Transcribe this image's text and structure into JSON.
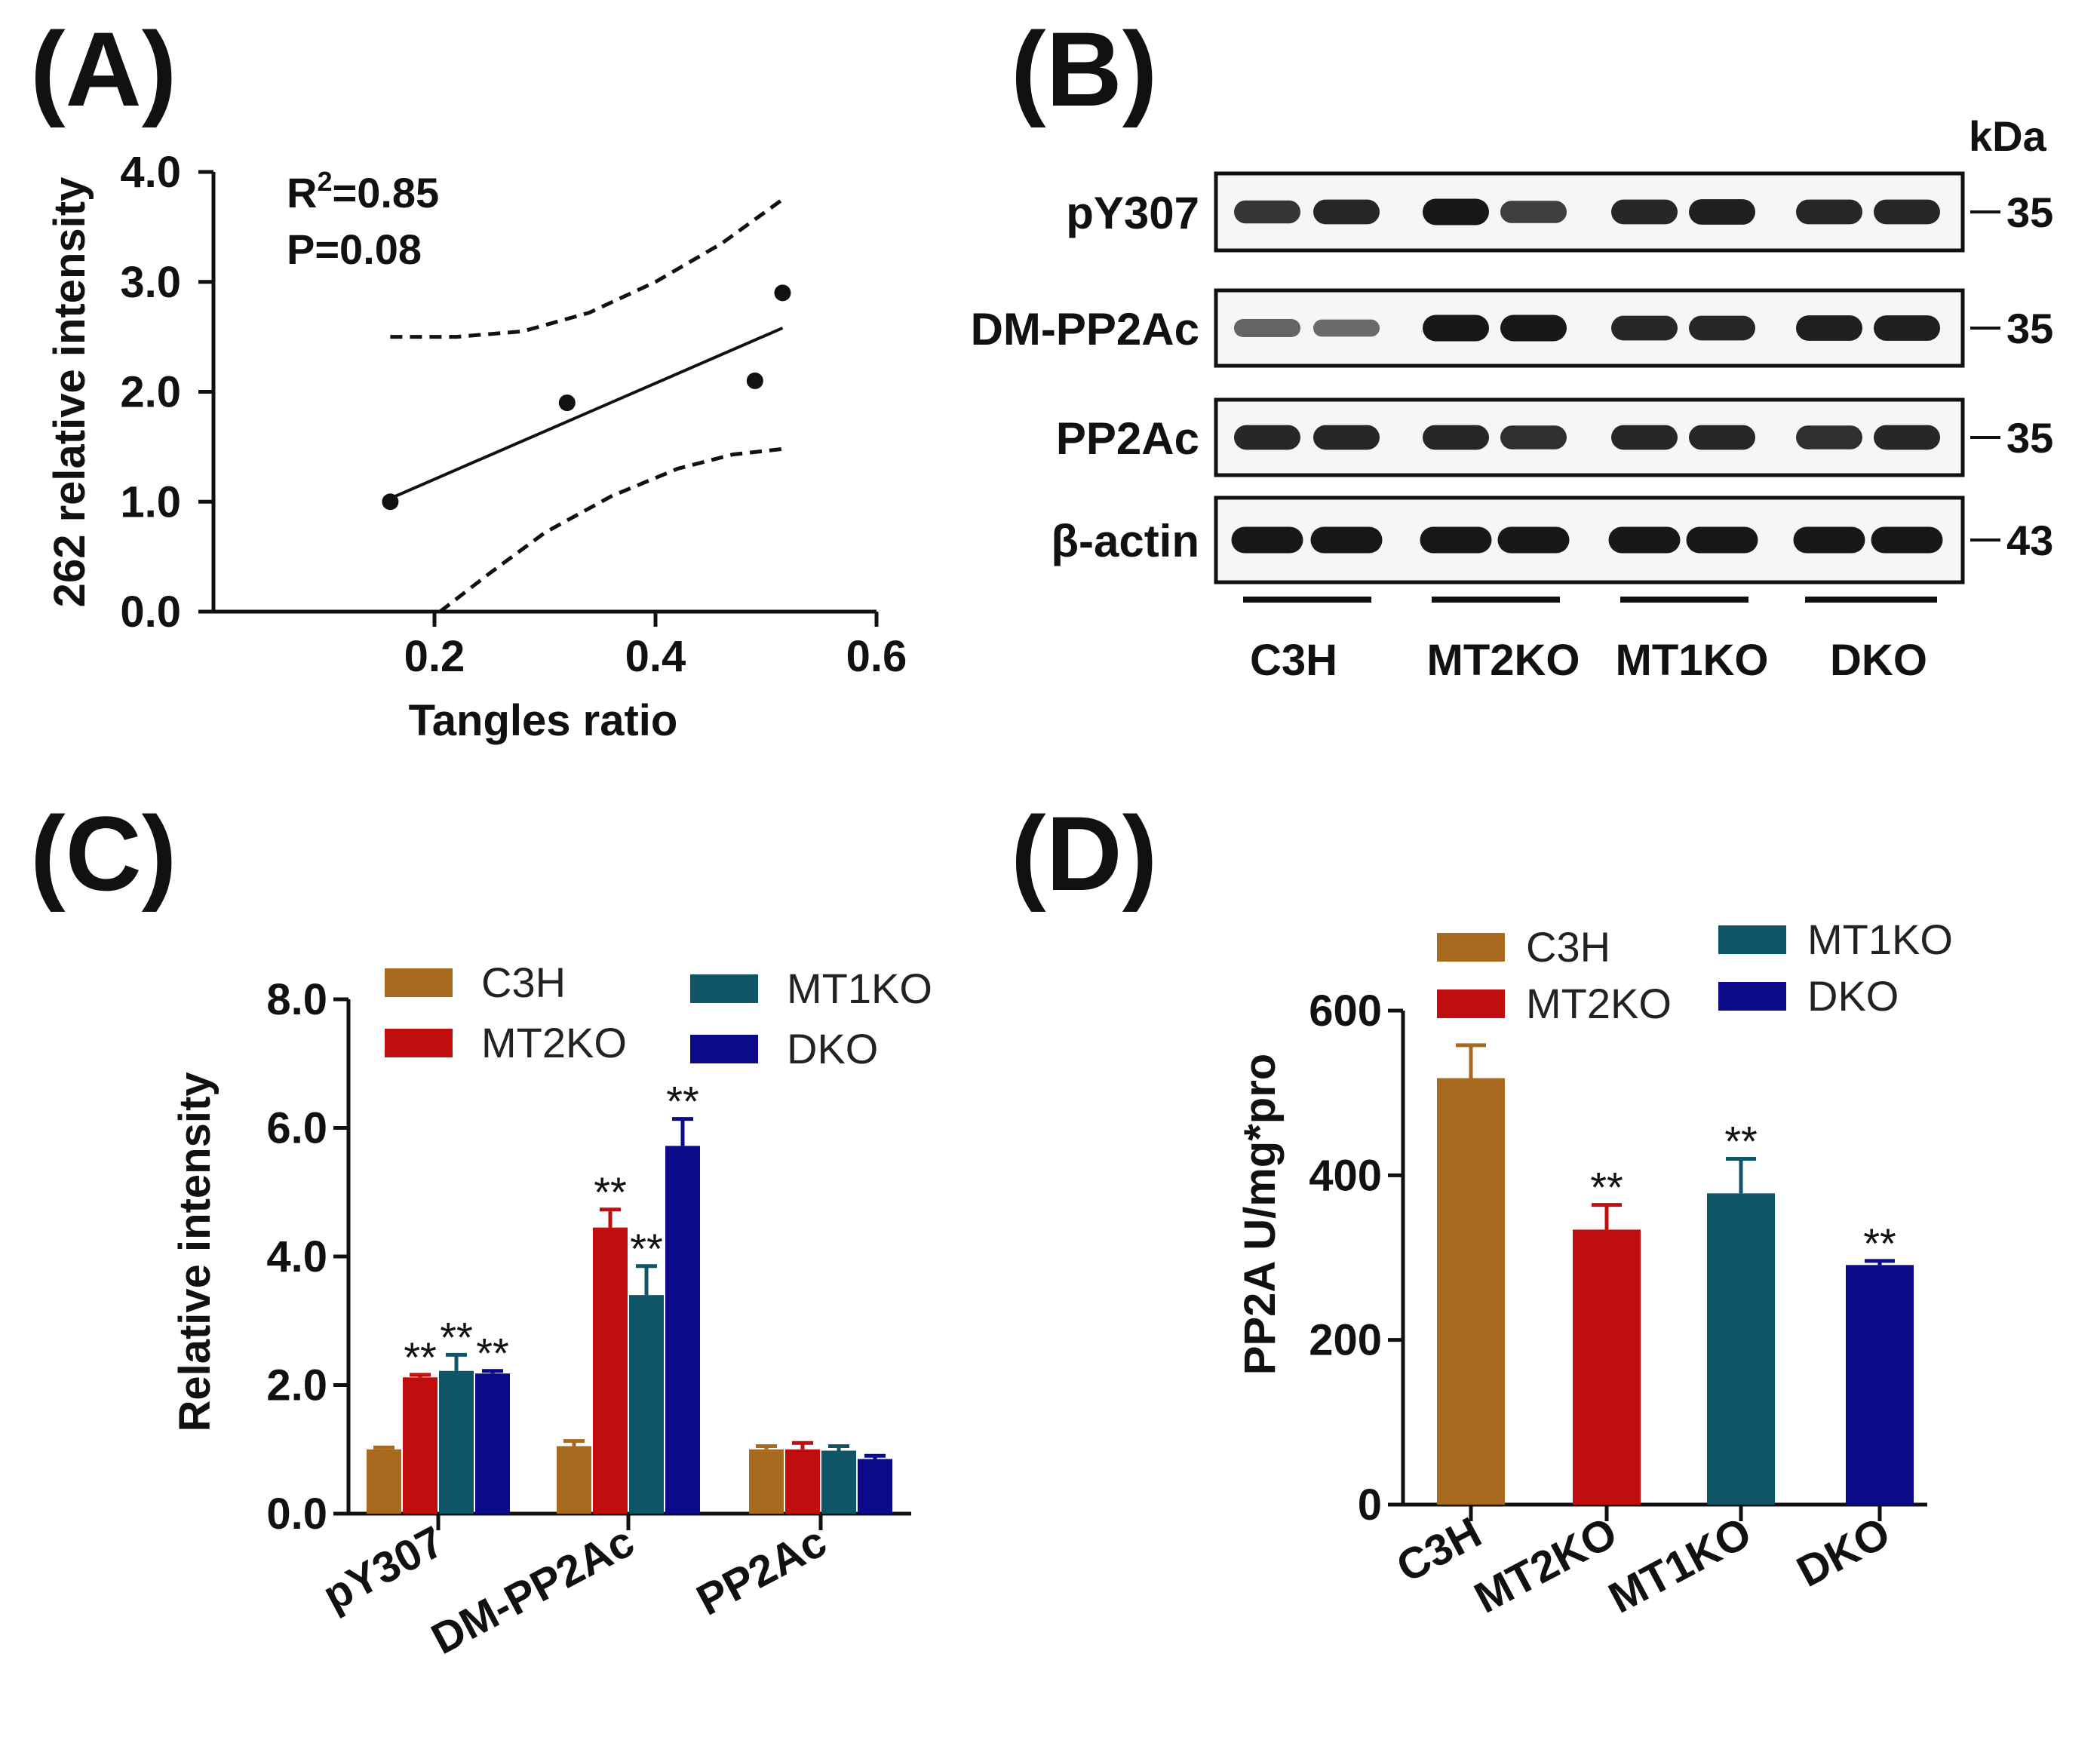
{
  "panelA": {
    "label": "(A)",
    "stats": {
      "r2_prefix": "R",
      "r2_sup": "2",
      "r2_value": "=0.85",
      "p_text": "P=0.08"
    },
    "xlabel": "Tangles ratio",
    "ylabel": "262 relative intensity"
  },
  "panelB": {
    "label": "(B)",
    "kda_label": "kDa",
    "groups": [
      "C3H",
      "MT2KO",
      "MT1KO",
      "DKO"
    ],
    "rows": [
      {
        "label": "pY307",
        "marker": "35"
      },
      {
        "label": "DM-PP2Ac",
        "marker": "35"
      },
      {
        "label": "PP2Ac",
        "marker": "35"
      },
      {
        "label": "β-actin",
        "marker": "43"
      }
    ],
    "band_intensity": [
      [
        0.75,
        0.85,
        0.95,
        0.7,
        0.85,
        0.9,
        0.85,
        0.85
      ],
      [
        0.45,
        0.4,
        0.95,
        0.95,
        0.85,
        0.85,
        0.9,
        0.9
      ],
      [
        0.85,
        0.85,
        0.85,
        0.8,
        0.85,
        0.85,
        0.8,
        0.85
      ],
      [
        0.95,
        0.95,
        0.95,
        0.95,
        0.95,
        0.95,
        0.95,
        0.95
      ]
    ]
  },
  "panelC": {
    "label": "(C)"
  },
  "panelD": {
    "label": "(D)"
  },
  "colors": {
    "C3H": "#a86a1f",
    "MT2KO": "#c00d0d",
    "MT1KO": "#0f5565",
    "DKO": "#0a0a8a"
  },
  "chart_data": [
    {
      "id": "A",
      "type": "scatter",
      "title": "",
      "xlabel": "Tangles ratio",
      "ylabel": "262 relative intensity",
      "xlim": [
        0.0,
        0.6
      ],
      "ylim": [
        0.0,
        4.0
      ],
      "xticks": [
        "0.2",
        "0.4",
        "0.6"
      ],
      "yticks": [
        "0.0",
        "1.0",
        "2.0",
        "3.0",
        "4.0"
      ],
      "points": [
        {
          "x": 0.16,
          "y": 1.0
        },
        {
          "x": 0.32,
          "y": 1.9
        },
        {
          "x": 0.49,
          "y": 2.1
        },
        {
          "x": 0.515,
          "y": 2.9
        }
      ],
      "fit_line": {
        "x0": 0.16,
        "y0": 1.03,
        "x1": 0.515,
        "y1": 2.58
      },
      "ci_upper": [
        {
          "x": 0.16,
          "y": 2.5
        },
        {
          "x": 0.22,
          "y": 2.5
        },
        {
          "x": 0.28,
          "y": 2.55
        },
        {
          "x": 0.34,
          "y": 2.72
        },
        {
          "x": 0.4,
          "y": 3.0
        },
        {
          "x": 0.46,
          "y": 3.35
        },
        {
          "x": 0.515,
          "y": 3.75
        }
      ],
      "ci_lower": [
        {
          "x": 0.205,
          "y": 0.0
        },
        {
          "x": 0.25,
          "y": 0.35
        },
        {
          "x": 0.3,
          "y": 0.72
        },
        {
          "x": 0.36,
          "y": 1.05
        },
        {
          "x": 0.42,
          "y": 1.3
        },
        {
          "x": 0.47,
          "y": 1.43
        },
        {
          "x": 0.515,
          "y": 1.48
        }
      ]
    },
    {
      "id": "C",
      "type": "bar",
      "title": "",
      "xlabel": "",
      "ylabel": "Relative intensity",
      "ylim": [
        0.0,
        8.0
      ],
      "yticks": [
        "0.0",
        "2.0",
        "4.0",
        "6.0",
        "8.0"
      ],
      "categories": [
        "pY307",
        "DM-PP2Ac",
        "PP2Ac"
      ],
      "legend": [
        "C3H",
        "MT2KO",
        "MT1KO",
        "DKO"
      ],
      "series": [
        {
          "name": "C3H",
          "values": [
            1.0,
            1.05,
            1.0
          ],
          "errors": [
            0.03,
            0.08,
            0.05
          ],
          "sig": [
            "",
            "",
            ""
          ]
        },
        {
          "name": "MT2KO",
          "values": [
            2.12,
            4.45,
            1.0
          ],
          "errors": [
            0.04,
            0.28,
            0.1
          ],
          "sig": [
            "**",
            "**",
            ""
          ]
        },
        {
          "name": "MT1KO",
          "values": [
            2.22,
            3.4,
            0.98
          ],
          "errors": [
            0.25,
            0.45,
            0.07
          ],
          "sig": [
            "**",
            "**",
            ""
          ]
        },
        {
          "name": "DKO",
          "values": [
            2.18,
            5.72,
            0.85
          ],
          "errors": [
            0.04,
            0.42,
            0.05
          ],
          "sig": [
            "**",
            "**",
            ""
          ]
        }
      ]
    },
    {
      "id": "D",
      "type": "bar",
      "title": "",
      "xlabel": "",
      "ylabel": "PP2A U/mg*pro",
      "ylim": [
        0,
        600
      ],
      "yticks": [
        "0",
        "200",
        "400",
        "600"
      ],
      "categories": [
        "C3H",
        "MT2KO",
        "MT1KO",
        "DKO"
      ],
      "legend": [
        "C3H",
        "MT2KO",
        "MT1KO",
        "DKO"
      ],
      "values": [
        518,
        334,
        378,
        291
      ],
      "errors": [
        40,
        30,
        42,
        5
      ],
      "sig": [
        "",
        "**",
        "**",
        "**"
      ]
    }
  ]
}
